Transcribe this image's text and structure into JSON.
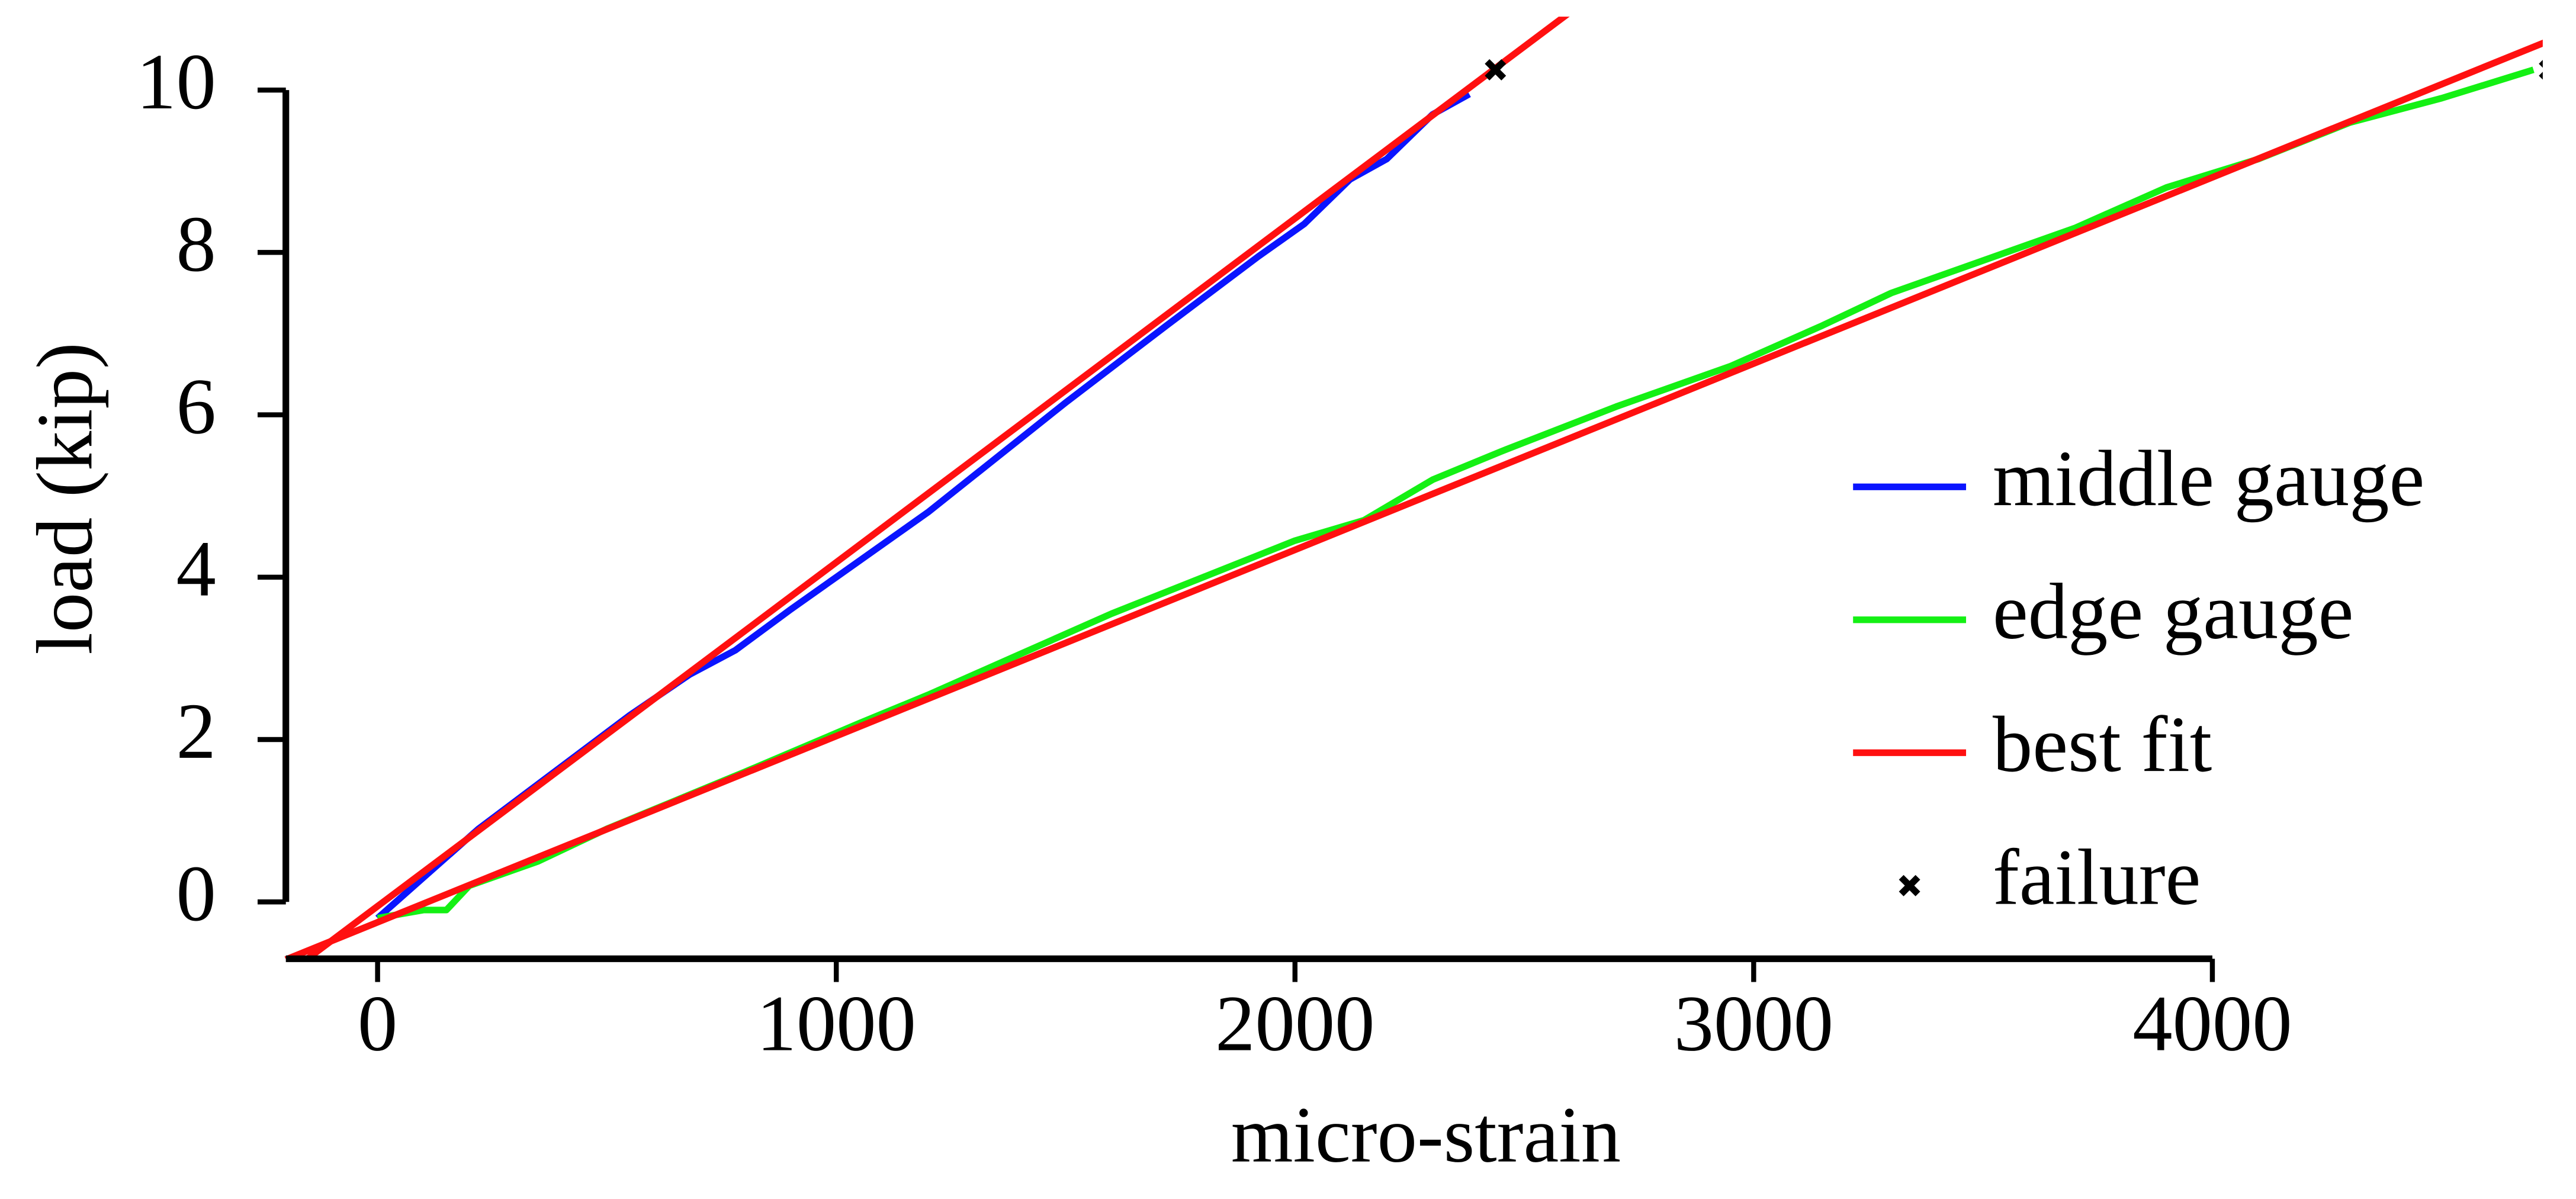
{
  "chart_data": {
    "type": "line",
    "xlabel": "micro-strain",
    "ylabel": "load (kip)",
    "xlim": [
      -200,
      4800
    ],
    "ylim": [
      -0.7,
      10.7
    ],
    "xticks": [
      0,
      1000,
      2000,
      3000,
      4000
    ],
    "yticks": [
      0,
      2,
      4,
      6,
      8,
      10
    ],
    "grid": false,
    "legend": "lower right",
    "series": [
      {
        "name": "middle gauge",
        "color": "#0a14ff",
        "marker": "none",
        "x": [
          0,
          100,
          220,
          550,
          680,
          780,
          900,
          1000,
          1200,
          1400,
          1500,
          1720,
          1920,
          2020,
          2120,
          2200,
          2300,
          2380
        ],
        "values": [
          -0.2,
          0.3,
          0.9,
          2.3,
          2.8,
          3.1,
          3.6,
          4.0,
          4.8,
          5.7,
          6.15,
          7.1,
          7.95,
          8.35,
          8.9,
          9.15,
          9.7,
          9.95
        ]
      },
      {
        "name": "edge gauge",
        "color": "#14f014",
        "marker": "none",
        "x": [
          0,
          100,
          150,
          200,
          350,
          500,
          800,
          1050,
          1200,
          1400,
          1600,
          1800,
          2000,
          2150,
          2300,
          2450,
          2700,
          2950,
          3150,
          3300,
          3500,
          3700,
          3900,
          4100,
          4300,
          4500,
          4700
        ],
        "values": [
          -0.2,
          -0.1,
          -0.1,
          0.2,
          0.5,
          0.9,
          1.6,
          2.2,
          2.55,
          3.05,
          3.55,
          4.0,
          4.45,
          4.7,
          5.2,
          5.55,
          6.1,
          6.6,
          7.1,
          7.5,
          7.9,
          8.3,
          8.8,
          9.15,
          9.6,
          9.9,
          10.25
        ]
      },
      {
        "name": "best fit",
        "color": "#ff1010",
        "marker": "none",
        "x": [
          -200,
          2600
        ],
        "values": [
          -0.9,
          10.96
        ]
      },
      {
        "name": null,
        "color": "#ff1010",
        "marker": "none",
        "x": [
          -200,
          4800
        ],
        "values": [
          -0.71,
          10.76
        ]
      },
      {
        "name": "failure",
        "color": "#000000",
        "marker": "x",
        "x": [
          2437,
          4735
        ],
        "values": [
          10.25,
          10.25
        ]
      }
    ]
  }
}
